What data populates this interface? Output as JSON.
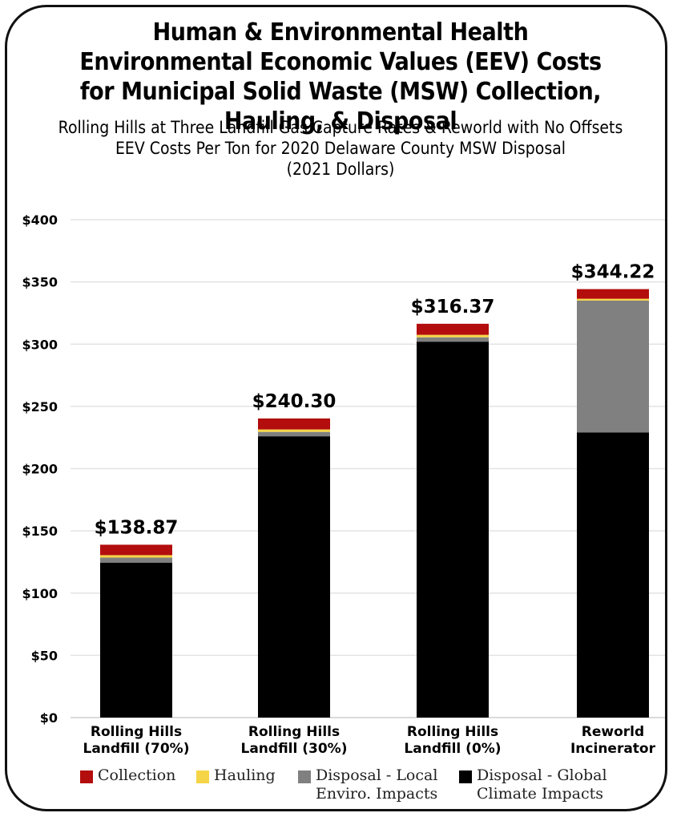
{
  "chart_data": {
    "type": "bar",
    "stacked": true,
    "title": "Human & Environmental Health Environmental Economic Values (EEV) Costs for Municipal Solid Waste (MSW) Collection, Hauling, & Disposal",
    "subtitle_lines": [
      "Rolling Hills at Three Landfill Gas Capture Rates & Reworld with No Offsets",
      "EEV Costs Per Ton for 2020 Delaware County MSW Disposal",
      "(2021 Dollars)"
    ],
    "categories": [
      [
        "Rolling Hills",
        "Landfill (70%)"
      ],
      [
        "Rolling Hills",
        "Landfill (30%)"
      ],
      [
        "Rolling Hills",
        "Landfill (0%)"
      ],
      [
        "Reworld",
        "Incinerator"
      ]
    ],
    "series": [
      {
        "name": "Disposal - Global Climate Impacts",
        "legend_lines": [
          "Disposal - Global",
          "Climate Impacts"
        ],
        "color": "#000000",
        "values": [
          124.5,
          226,
          302,
          229
        ]
      },
      {
        "name": "Disposal - Local Enviro. Impacts",
        "legend_lines": [
          "Disposal - Local",
          "Enviro. Impacts"
        ],
        "color": "#808080",
        "values": [
          4,
          3.5,
          3.5,
          106
        ]
      },
      {
        "name": "Hauling",
        "legend_lines": [
          "Hauling"
        ],
        "color": "#f5d547",
        "values": [
          2,
          2,
          2,
          1.5
        ]
      },
      {
        "name": "Collection",
        "legend_lines": [
          "Collection"
        ],
        "color": "#b30d0d",
        "values": [
          8.37,
          8.8,
          8.87,
          7.72
        ]
      }
    ],
    "totals": [
      "$138.87",
      "$240.30",
      "$316.37",
      "$344.22"
    ],
    "ylim": [
      0,
      400
    ],
    "yticks": [
      0,
      50,
      100,
      150,
      200,
      250,
      300,
      350,
      400
    ],
    "ytick_labels": [
      "$0",
      "$50",
      "$100",
      "$150",
      "$200",
      "$250",
      "$300",
      "$350",
      "$400"
    ],
    "grid": true,
    "legend_position": "bottom",
    "legend_order": [
      3,
      2,
      1,
      0
    ]
  }
}
